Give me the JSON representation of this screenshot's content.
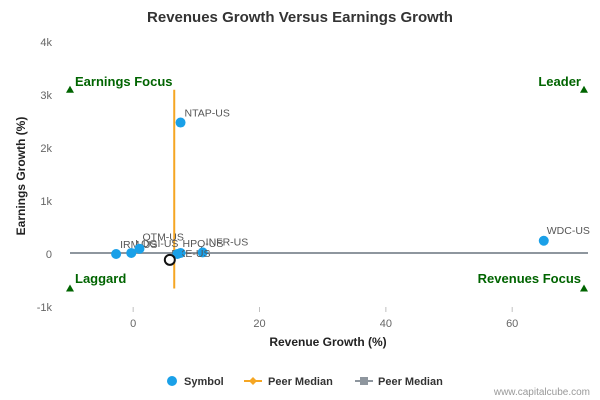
{
  "chart_data": {
    "type": "scatter",
    "title": "Revenues Growth Versus Earnings Growth",
    "xlabel": "Revenue Growth (%)",
    "ylabel": "Earnings Growth (%)",
    "xlim": [
      -10,
      72
    ],
    "ylim": [
      -1000,
      4000
    ],
    "x_ticks": [
      {
        "value": 0,
        "label": "0"
      },
      {
        "value": 20,
        "label": "20"
      },
      {
        "value": 40,
        "label": "40"
      },
      {
        "value": 60,
        "label": "60"
      }
    ],
    "y_ticks": [
      {
        "value": -1000,
        "label": "-1k"
      },
      {
        "value": 0,
        "label": "0"
      },
      {
        "value": 1000,
        "label": "1k"
      },
      {
        "value": 2000,
        "label": "2k"
      },
      {
        "value": 3000,
        "label": "3k"
      },
      {
        "value": 4000,
        "label": "4k"
      }
    ],
    "points": [
      {
        "symbol": "NTAP-US",
        "x": 7.5,
        "y": 2480
      },
      {
        "symbol": "WDC-US",
        "x": 65,
        "y": 250
      },
      {
        "symbol": "IRM-US",
        "x": -2.7,
        "y": 0
      },
      {
        "symbol": "LOGI-US",
        "x": -0.3,
        "y": 20
      },
      {
        "symbol": "QTM-US",
        "x": 1,
        "y": 100
      },
      {
        "symbol": "HPQ-US",
        "x": 7.5,
        "y": 20
      },
      {
        "symbol": "INFR-US",
        "x": 11,
        "y": 30
      },
      {
        "symbol": "PKE-US",
        "x": 7,
        "y": 0
      }
    ],
    "subject_point": {
      "x": 5.8,
      "y": -110
    },
    "peer_median_x": 6.5,
    "peer_median_y": 20,
    "quadrants": {
      "top_left": "Earnings Focus",
      "top_right": "Leader",
      "bottom_left": "Laggard",
      "bottom_right": "Revenues Focus"
    },
    "legend": [
      {
        "label": "Symbol",
        "color": "#1aa0e8"
      },
      {
        "label": "Peer Median",
        "color": "#f5a623"
      },
      {
        "label": "Peer Median",
        "color": "#8e969e"
      }
    ],
    "colors": {
      "point": "#1aa0e8",
      "median_x_line": "#f5a623",
      "median_y_line": "#8e969e",
      "quadrant_text": "#006400"
    }
  },
  "credit": "www.capitalcube.com"
}
